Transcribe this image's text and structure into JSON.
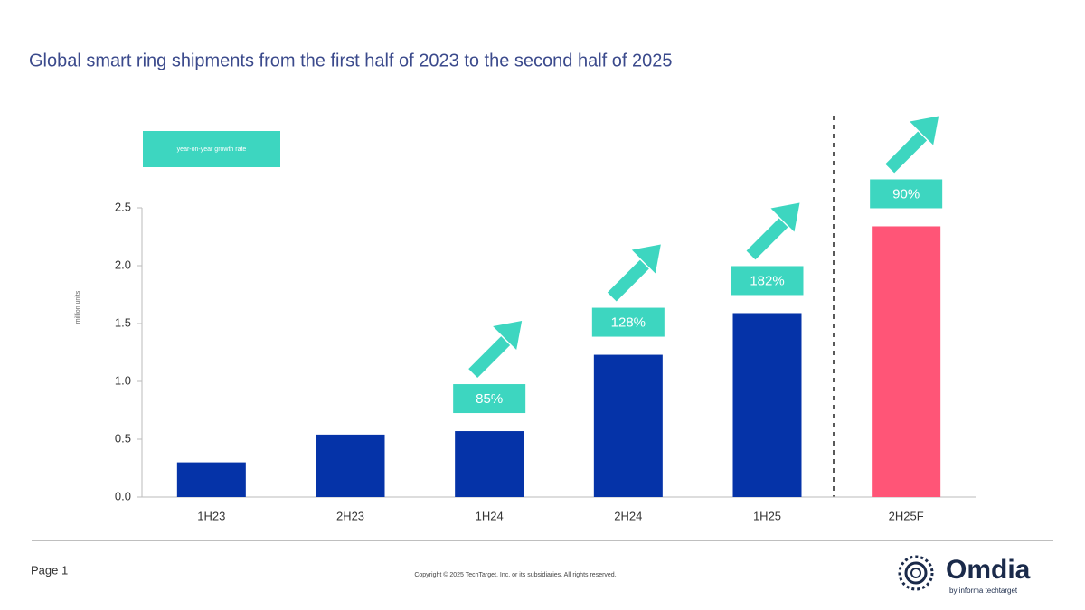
{
  "chart_data": {
    "type": "bar",
    "title": "Global smart ring shipments from the first half of 2023 to the second half of 2025",
    "y_label": "million units",
    "categories": [
      "1H23",
      "2H23",
      "1H24",
      "2H24",
      "1H25",
      "2H25F"
    ],
    "values": [
      0.3,
      0.54,
      0.57,
      1.23,
      1.59,
      2.34
    ],
    "colors": [
      "#0533a8",
      "#0533a8",
      "#0533a8",
      "#0533a8",
      "#0533a8",
      "#ff5577"
    ],
    "growth": {
      "name": "year-on-year growth rate",
      "color": "#3dd6c0",
      "values": [
        null,
        null,
        85,
        128,
        182,
        90
      ],
      "value_labels": [
        null,
        null,
        "85%",
        "128%",
        "182%",
        "90%"
      ]
    },
    "ylim": [
      0,
      2.5
    ],
    "yticks": [
      {
        "value": 0,
        "label": "0.0"
      },
      0.5,
      {
        "value": 1,
        "label": "1.0"
      },
      1.5,
      {
        "value": 2,
        "label": "2.0"
      },
      2.5
    ],
    "grid": false
  },
  "footer": {
    "page": "Page 1",
    "copyright": "Copyright © 2025 TechTarget, Inc. or its subsidiaries. All rights reserved.",
    "brand": "Omdia",
    "brand_sub": "by informa techtarget"
  }
}
